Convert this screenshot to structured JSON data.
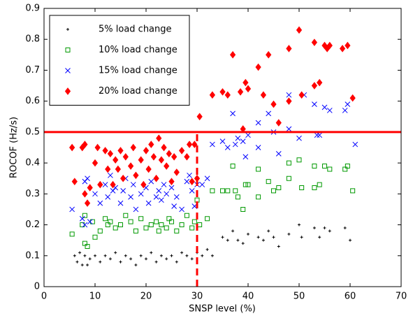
{
  "chart_data": {
    "type": "scatter",
    "xlabel": "SNSP level (%)",
    "ylabel": "ROCOF (Hz/s)",
    "xlim": [
      0,
      70
    ],
    "ylim": [
      0,
      0.9
    ],
    "xticks": [
      0,
      10,
      20,
      30,
      40,
      50,
      60,
      70
    ],
    "yticks": [
      0,
      0.1,
      0.2,
      0.3,
      0.4,
      0.5,
      0.6,
      0.7,
      0.8,
      0.9
    ],
    "legend": "upper left",
    "hlines": [
      {
        "y": 0.5,
        "color": "#ff0000"
      }
    ],
    "vlines": [
      {
        "x": 30,
        "ymax": 0.5,
        "color": "#ff0000",
        "dashed": true
      }
    ],
    "series": [
      {
        "name": "5% load change",
        "color": "#000000",
        "marker": "point",
        "x": [
          6,
          6.5,
          7,
          7.5,
          8,
          8.5,
          9,
          10,
          11,
          12,
          13,
          14,
          15,
          16,
          17,
          18,
          19,
          20,
          21,
          22,
          23,
          24,
          25,
          26,
          27,
          28,
          29,
          30,
          31,
          32,
          33,
          35,
          36,
          37,
          38,
          39,
          40,
          42,
          43,
          44,
          45,
          46,
          48,
          50,
          50.5,
          53,
          54,
          55,
          56,
          59,
          60
        ],
        "y": [
          0.1,
          0.08,
          0.11,
          0.07,
          0.1,
          0.07,
          0.09,
          0.1,
          0.08,
          0.1,
          0.09,
          0.11,
          0.08,
          0.1,
          0.09,
          0.07,
          0.1,
          0.09,
          0.11,
          0.08,
          0.1,
          0.09,
          0.1,
          0.08,
          0.11,
          0.1,
          0.09,
          0.11,
          0.1,
          0.12,
          0.1,
          0.16,
          0.15,
          0.18,
          0.15,
          0.14,
          0.17,
          0.16,
          0.15,
          0.18,
          0.16,
          0.13,
          0.17,
          0.2,
          0.16,
          0.19,
          0.16,
          0.19,
          0.18,
          0.19,
          0.15
        ]
      },
      {
        "name": "10% load change",
        "color": "#009900",
        "marker": "square",
        "x": [
          5.5,
          7.5,
          8,
          8,
          8.5,
          9.5,
          10,
          11,
          12,
          12.5,
          13,
          14,
          15,
          16,
          17,
          18,
          19,
          20,
          21,
          22,
          22.5,
          23,
          24,
          24.5,
          25,
          26,
          27,
          28,
          29,
          29.5,
          30,
          30.5,
          32,
          33,
          35,
          36,
          37,
          37.5,
          38,
          39,
          39.5,
          40,
          42,
          42,
          44,
          45,
          46,
          48,
          48,
          50,
          50.5,
          53,
          53,
          54,
          55,
          56,
          59,
          59.5,
          60.5
        ],
        "y": [
          0.17,
          0.2,
          0.23,
          0.14,
          0.13,
          0.21,
          0.16,
          0.18,
          0.22,
          0.2,
          0.21,
          0.19,
          0.2,
          0.23,
          0.21,
          0.18,
          0.22,
          0.19,
          0.2,
          0.21,
          0.18,
          0.2,
          0.19,
          0.22,
          0.21,
          0.18,
          0.2,
          0.23,
          0.19,
          0.21,
          0.28,
          0.2,
          0.22,
          0.31,
          0.31,
          0.31,
          0.39,
          0.31,
          0.29,
          0.25,
          0.33,
          0.33,
          0.38,
          0.29,
          0.34,
          0.31,
          0.32,
          0.4,
          0.35,
          0.41,
          0.32,
          0.39,
          0.32,
          0.33,
          0.39,
          0.38,
          0.38,
          0.39,
          0.31
        ]
      },
      {
        "name": "15% load change",
        "color": "#0000ff",
        "marker": "x",
        "x": [
          5.5,
          7.5,
          8,
          8,
          8.5,
          9,
          10,
          11,
          12,
          12.5,
          13,
          13.5,
          14,
          15,
          15.5,
          16,
          17,
          17.5,
          18,
          19,
          20,
          20.5,
          21,
          22,
          22.5,
          23,
          23.5,
          24,
          25,
          25.5,
          26,
          27,
          28,
          28.5,
          29,
          29.5,
          30,
          31,
          32,
          33,
          35,
          36,
          37,
          37.5,
          38,
          39,
          39.5,
          40,
          42,
          42,
          44,
          45,
          46,
          48,
          48,
          50,
          51,
          53,
          53.5,
          54,
          55,
          56,
          59,
          59.5,
          61
        ],
        "y": [
          0.25,
          0.22,
          0.34,
          0.2,
          0.35,
          0.21,
          0.3,
          0.27,
          0.33,
          0.29,
          0.36,
          0.31,
          0.32,
          0.27,
          0.31,
          0.35,
          0.29,
          0.33,
          0.25,
          0.3,
          0.32,
          0.27,
          0.34,
          0.29,
          0.31,
          0.28,
          0.33,
          0.3,
          0.32,
          0.26,
          0.29,
          0.25,
          0.34,
          0.36,
          0.31,
          0.26,
          0.33,
          0.33,
          0.35,
          0.46,
          0.47,
          0.45,
          0.56,
          0.46,
          0.48,
          0.47,
          0.42,
          0.49,
          0.53,
          0.45,
          0.56,
          0.5,
          0.43,
          0.51,
          0.62,
          0.48,
          0.62,
          0.59,
          0.49,
          0.49,
          0.58,
          0.57,
          0.57,
          0.59,
          0.46
        ]
      },
      {
        "name": "20% load change",
        "color": "#ff0000",
        "marker": "diamond",
        "x": [
          5.5,
          6,
          7.5,
          8,
          8,
          8.5,
          9,
          10,
          10.5,
          11,
          12,
          12.5,
          13,
          13.5,
          14,
          14.5,
          15,
          15.5,
          16,
          17,
          17.5,
          18,
          19,
          19.5,
          20,
          20.5,
          21,
          21.5,
          22,
          22.5,
          23,
          23.5,
          24,
          24.5,
          25,
          25.5,
          26,
          27,
          28,
          28.5,
          29,
          29.5,
          30,
          30.5,
          33,
          35,
          36,
          37,
          38.5,
          39,
          39.5,
          40,
          42,
          43,
          44,
          45,
          46,
          48,
          48,
          50,
          50.5,
          53,
          53,
          54,
          55,
          55.5,
          56,
          58.5,
          59.5,
          60.5
        ],
        "y": [
          0.45,
          0.34,
          0.45,
          0.46,
          0.3,
          0.27,
          0.32,
          0.4,
          0.45,
          0.33,
          0.44,
          0.38,
          0.43,
          0.33,
          0.41,
          0.38,
          0.44,
          0.35,
          0.42,
          0.39,
          0.45,
          0.36,
          0.41,
          0.33,
          0.44,
          0.38,
          0.46,
          0.42,
          0.35,
          0.48,
          0.41,
          0.45,
          0.39,
          0.43,
          0.34,
          0.42,
          0.37,
          0.44,
          0.42,
          0.46,
          0.34,
          0.46,
          0.35,
          0.55,
          0.62,
          0.63,
          0.62,
          0.75,
          0.63,
          0.51,
          0.66,
          0.64,
          0.71,
          0.62,
          0.75,
          0.59,
          0.53,
          0.77,
          0.6,
          0.83,
          0.62,
          0.79,
          0.65,
          0.66,
          0.78,
          0.77,
          0.78,
          0.77,
          0.78,
          0.61
        ]
      }
    ]
  }
}
